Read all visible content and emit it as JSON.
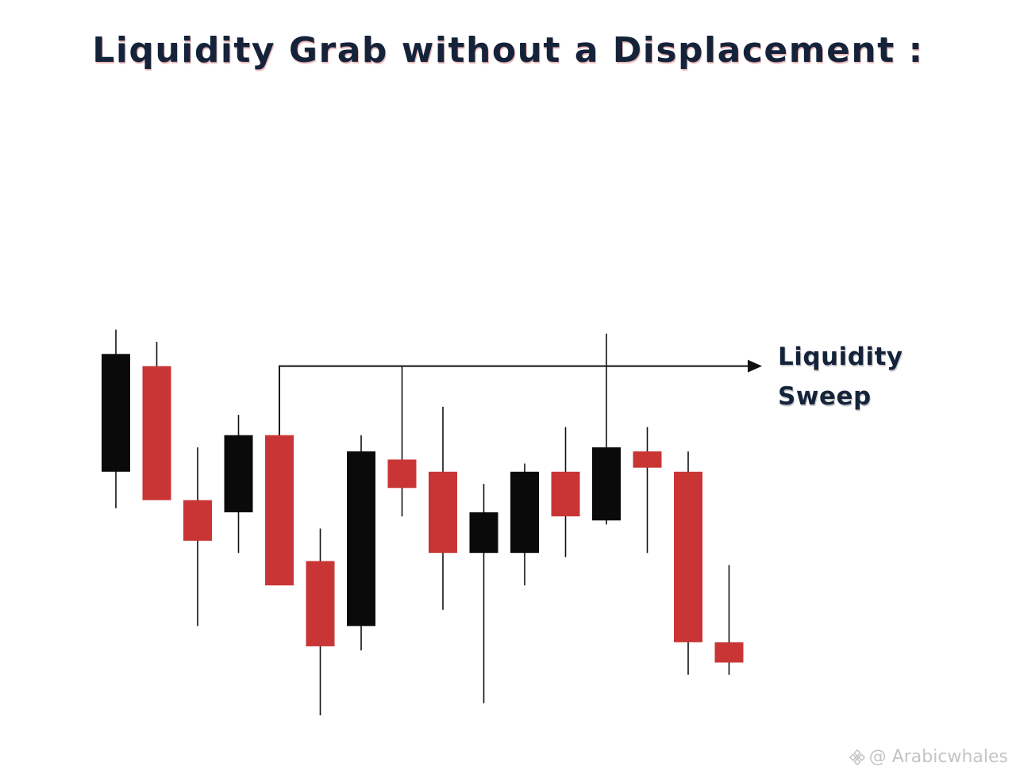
{
  "title": "Liquidity Grab without a Displacement :",
  "annotation": {
    "line1": "Liquidity",
    "line2": "Sweep"
  },
  "watermark": {
    "handle": "@ Arabicwhales",
    "icon": "binance-logo-icon"
  },
  "colors": {
    "bullish": "#0a0a0a",
    "bearish": "#c93535",
    "wick": "#111111",
    "title": "#15233a"
  },
  "chart_data": {
    "type": "candlestick",
    "title": "Liquidity Grab without a Displacement :",
    "xlabel": "",
    "ylabel": "",
    "ylim": [
      0,
      100
    ],
    "grid": false,
    "liquidity_level": 86,
    "candles": [
      {
        "color": "black",
        "high": 95,
        "low": 51,
        "body_top": 89,
        "body_bottom": 60
      },
      {
        "color": "red",
        "high": 92,
        "low": 55,
        "body_top": 86,
        "body_bottom": 53
      },
      {
        "color": "red",
        "high": 66,
        "low": 22,
        "body_top": 53,
        "body_bottom": 43
      },
      {
        "color": "black",
        "high": 74,
        "low": 40,
        "body_top": 69,
        "body_bottom": 50
      },
      {
        "color": "red",
        "high": 86,
        "low": 32,
        "body_top": 69,
        "body_bottom": 32
      },
      {
        "color": "red",
        "high": 46,
        "low": 0,
        "body_top": 38,
        "body_bottom": 17
      },
      {
        "color": "black",
        "high": 69,
        "low": 16,
        "body_top": 65,
        "body_bottom": 22
      },
      {
        "color": "red",
        "high": 86,
        "low": 49,
        "body_top": 63,
        "body_bottom": 56
      },
      {
        "color": "red",
        "high": 76,
        "low": 26,
        "body_top": 60,
        "body_bottom": 40
      },
      {
        "color": "black",
        "high": 57,
        "low": 3,
        "body_top": 50,
        "body_bottom": 40
      },
      {
        "color": "black",
        "high": 62,
        "low": 32,
        "body_top": 60,
        "body_bottom": 40
      },
      {
        "color": "red",
        "high": 71,
        "low": 39,
        "body_top": 60,
        "body_bottom": 49
      },
      {
        "color": "black",
        "high": 94,
        "low": 47,
        "body_top": 66,
        "body_bottom": 48
      },
      {
        "color": "red",
        "high": 71,
        "low": 40,
        "body_top": 65,
        "body_bottom": 61
      },
      {
        "color": "red",
        "high": 65,
        "low": 10,
        "body_top": 60,
        "body_bottom": 18
      },
      {
        "color": "red",
        "high": 37,
        "low": 10,
        "body_top": 18,
        "body_bottom": 13
      }
    ]
  }
}
